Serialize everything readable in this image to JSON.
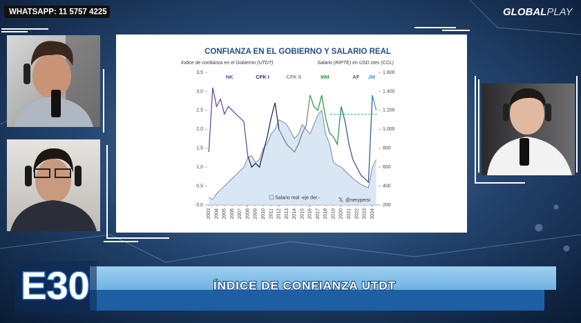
{
  "overlay": {
    "whatsapp": "WHATSAPP: 11 5757 4225",
    "logo": [
      "GLOBAL",
      "PLAY"
    ],
    "episode": "E30",
    "banner": "ÍNDICE DE CONFIANZA UTDT"
  },
  "chart_data": {
    "type": "line",
    "title": "CONFIANZA EN EL GOBIERNO Y SALARIO REAL",
    "y_label": "Índice de confianza en el Gobierno (UTDT)",
    "y2_label": "Salario (RIPTE) en USD ctes (CCL)",
    "source": "@nerypersi",
    "x": [
      2003,
      2003.5,
      2004,
      2004.5,
      2005,
      2005.5,
      2006,
      2006.5,
      2007,
      2007.5,
      2008,
      2008.5,
      2009,
      2009.5,
      2010,
      2010.5,
      2011,
      2011.5,
      2012,
      2012.5,
      2013,
      2013.5,
      2014,
      2014.5,
      2015,
      2015.5,
      2016,
      2016.5,
      2017,
      2017.5,
      2018,
      2018.5,
      2019,
      2019.5,
      2020,
      2020.5,
      2021,
      2021.5,
      2022,
      2022.5,
      2023,
      2023.5,
      2024,
      2024.5
    ],
    "series": [
      {
        "name": "Índice de confianza",
        "color": "#1f2d5a",
        "values": [
          1.4,
          3.1,
          2.6,
          2.8,
          2.4,
          2.6,
          2.5,
          2.4,
          2.3,
          2.2,
          1.3,
          1.0,
          1.1,
          1.0,
          1.4,
          1.8,
          2.3,
          2.7,
          2.0,
          1.8,
          1.6,
          1.5,
          1.4,
          1.6,
          1.9,
          2.1,
          2.9,
          2.6,
          2.5,
          2.9,
          2.3,
          1.9,
          1.8,
          1.6,
          2.6,
          2.2,
          1.6,
          1.2,
          1.0,
          0.8,
          0.7,
          0.6,
          2.9,
          2.5
        ]
      },
      {
        "name": "Salario real -eje der.-",
        "color": "#c9dcef",
        "axis": "y2",
        "values": [
          280,
          260,
          320,
          360,
          400,
          440,
          480,
          520,
          560,
          600,
          700,
          720,
          650,
          680,
          800,
          850,
          950,
          1000,
          1100,
          1080,
          1050,
          980,
          900,
          950,
          1050,
          1000,
          950,
          1050,
          1150,
          1200,
          950,
          850,
          650,
          620,
          600,
          560,
          520,
          480,
          450,
          420,
          400,
          380,
          600,
          680
        ]
      }
    ],
    "periods": [
      {
        "label": "NK",
        "start": 2003.4,
        "color": "#6a4c9c"
      },
      {
        "label": "CFK I",
        "start": 2007.9,
        "color": "#1f2d5a"
      },
      {
        "label": "CFK II",
        "start": 2011.9,
        "color": "#7a8390"
      },
      {
        "label": "MM",
        "start": 2015.9,
        "color": "#2f9a4a"
      },
      {
        "label": "AF",
        "start": 2019.9,
        "color": "#3c5a8a"
      },
      {
        "label": "JM",
        "start": 2023.9,
        "color": "#29a3d6"
      }
    ],
    "reference": 2.4,
    "xlim": [
      2002.8,
      2024.8
    ],
    "xticks": [
      2003,
      2004,
      2005,
      2006,
      2007,
      2008,
      2009,
      2010,
      2011,
      2012,
      2013,
      2014,
      2015,
      2016,
      2017,
      2018,
      2019,
      2020,
      2021,
      2022,
      2023,
      2024
    ],
    "ylim": [
      0,
      3.5
    ],
    "yticks": [
      {
        "value": 0,
        "label": "0,0"
      },
      {
        "value": 0.5,
        "label": "0,5"
      },
      {
        "value": 1,
        "label": "1,0"
      },
      {
        "value": 1.5,
        "label": "1,5"
      },
      {
        "value": 2,
        "label": "2,0"
      },
      {
        "value": 2.5,
        "label": "2,5"
      },
      {
        "value": 3,
        "label": "3,0"
      },
      {
        "value": 3.5,
        "label": "3,5"
      }
    ],
    "y2lim": [
      200,
      1600
    ],
    "y2ticks": [
      200,
      400,
      600,
      800,
      {
        "value": 1000,
        "label": "1.000"
      },
      {
        "value": 1200,
        "label": "1.200"
      },
      {
        "value": 1400,
        "label": "1.400"
      },
      {
        "value": 1600,
        "label": "1.600"
      }
    ]
  }
}
